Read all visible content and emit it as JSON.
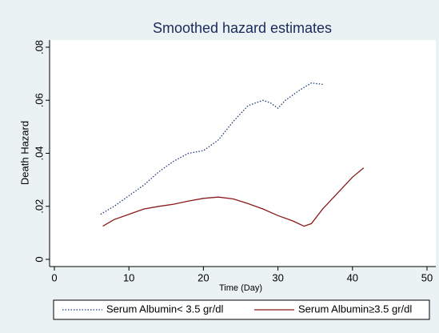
{
  "chart_data": {
    "type": "line",
    "title": "Smoothed hazard estimates",
    "x_label": "Time (Day)",
    "y_label": "Death Hazard",
    "xlim": [
      0,
      50
    ],
    "xticks": [
      0,
      10,
      20,
      30,
      40,
      50
    ],
    "ylim": [
      0,
      0.08
    ],
    "yticks": [
      0,
      {
        "value": 0.02,
        "label": ".02"
      },
      {
        "value": 0.04,
        "label": ".04"
      },
      {
        "value": 0.06,
        "label": ".06"
      },
      {
        "value": 0.08,
        "label": ".08"
      }
    ],
    "grid": false,
    "series": [
      {
        "name": "Serum Albumin< 3.5 gr/dl",
        "color": "#1a3a7a",
        "style": "dotted",
        "x": [
          6.2,
          8,
          10,
          12,
          14,
          16,
          18,
          20,
          22,
          24,
          26,
          28,
          29,
          30,
          31,
          33,
          34.5,
          36
        ],
        "values": [
          0.017,
          0.02,
          0.024,
          0.028,
          0.033,
          0.037,
          0.04,
          0.041,
          0.045,
          0.052,
          0.058,
          0.06,
          0.059,
          0.057,
          0.06,
          0.064,
          0.0665,
          0.066
        ]
      },
      {
        "name": "Serum Albumin≥3.5 gr/dl",
        "color": "#8b1a1a",
        "style": "solid",
        "x": [
          6.5,
          8,
          10,
          12,
          14,
          16,
          18,
          20,
          22,
          24,
          26,
          28,
          30,
          32,
          33.5,
          34.5,
          36,
          38,
          40,
          41.5
        ],
        "values": [
          0.0125,
          0.015,
          0.017,
          0.019,
          0.02,
          0.0208,
          0.022,
          0.023,
          0.0235,
          0.0228,
          0.021,
          0.019,
          0.0165,
          0.0145,
          0.0125,
          0.0135,
          0.019,
          0.025,
          0.031,
          0.0345
        ]
      }
    ]
  }
}
